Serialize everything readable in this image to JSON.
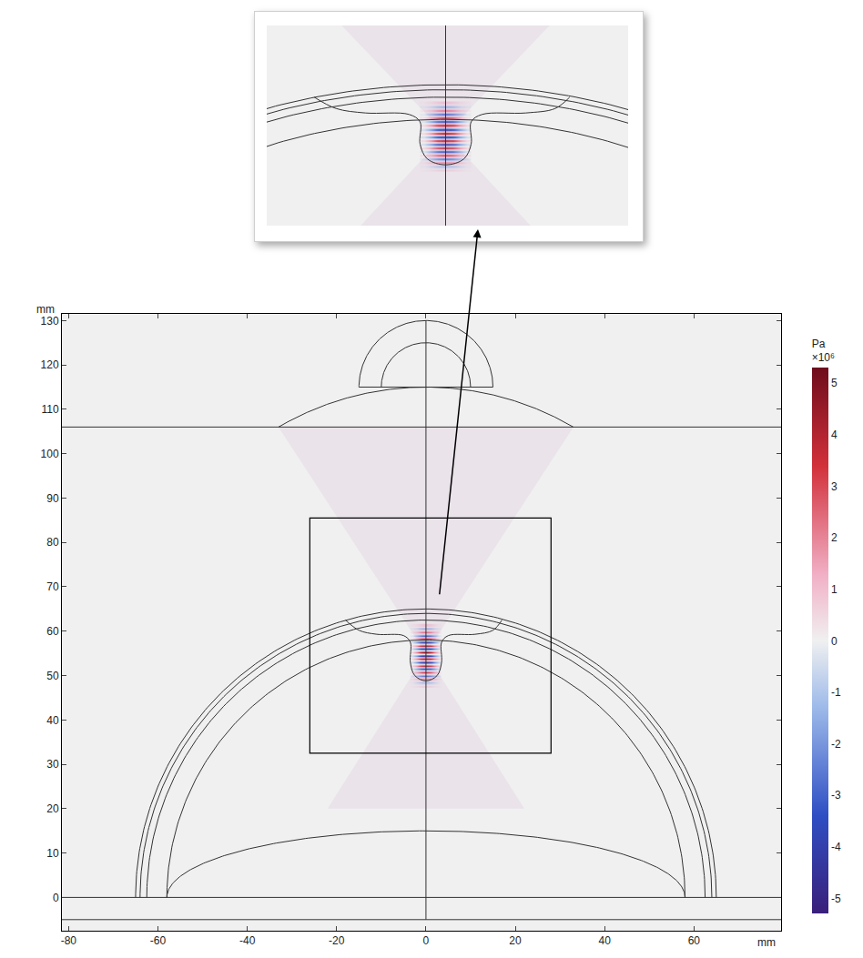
{
  "chart_data": {
    "type": "field",
    "x_unit": "mm",
    "y_unit": "mm",
    "xlim": [
      -81.5,
      79.5
    ],
    "xticks": [
      -80,
      -60,
      -40,
      -20,
      0,
      20,
      40,
      60
    ],
    "ylim": [
      -7.5,
      131.5
    ],
    "yticks": [
      0,
      10,
      20,
      30,
      40,
      50,
      60,
      70,
      80,
      90,
      100,
      110,
      120,
      130
    ],
    "grid": false,
    "field": {
      "colorbar_title": "Pa",
      "colorbar_exponent": "×10⁶",
      "crange": [
        -5.3,
        5.3
      ],
      "cticks": [
        -5,
        -4,
        -3,
        -2,
        -1,
        0,
        1,
        2,
        3,
        4,
        5
      ],
      "x": [
        -3,
        -2,
        -1,
        0,
        1,
        2,
        3
      ],
      "y": [
        47.75,
        48.5,
        49.25,
        50,
        50.75,
        51.5,
        52.25,
        53,
        53.75,
        54.5,
        55.25,
        56,
        56.75,
        57.5,
        58.25,
        59,
        59.75,
        60.5,
        61.25
      ],
      "values": [
        [
          0.05,
          0.2,
          0.4,
          0.5,
          0.4,
          0.2,
          0.05
        ],
        [
          -0.1,
          -0.5,
          -1,
          -1.2,
          -1,
          -0.5,
          -0.1
        ],
        [
          0.2,
          0.9,
          1.8,
          2.2,
          1.8,
          0.9,
          0.2
        ],
        [
          -0.3,
          -1.2,
          -2.4,
          -3,
          -2.4,
          -1.2,
          -0.3
        ],
        [
          0.4,
          1.4,
          2.9,
          3.6,
          2.9,
          1.4,
          0.4
        ],
        [
          -0.4,
          -1.6,
          -3.3,
          -4.1,
          -3.3,
          -1.6,
          -0.4
        ],
        [
          0.5,
          1.8,
          3.6,
          4.5,
          3.6,
          1.8,
          0.5
        ],
        [
          -0.5,
          -1.9,
          -3.8,
          -4.8,
          -3.8,
          -1.9,
          -0.5
        ],
        [
          0.5,
          2,
          4,
          5,
          4,
          2,
          0.5
        ],
        [
          -0.5,
          -2,
          -4.1,
          -5.1,
          -4.1,
          -2,
          -0.5
        ],
        [
          0.5,
          2,
          4,
          5,
          4,
          2,
          0.5
        ],
        [
          -0.5,
          -2,
          -3.9,
          -4.9,
          -3.9,
          -2,
          -0.5
        ],
        [
          0.5,
          1.9,
          3.8,
          4.7,
          3.8,
          1.9,
          0.5
        ],
        [
          -0.4,
          -1.8,
          -3.5,
          -4.4,
          -3.5,
          -1.8,
          -0.4
        ],
        [
          0.4,
          1.6,
          3.2,
          4,
          3.2,
          1.6,
          0.4
        ],
        [
          -0.3,
          -1.4,
          -2.7,
          -3.4,
          -2.7,
          -1.4,
          -0.3
        ],
        [
          0.3,
          1,
          2.1,
          2.6,
          2.1,
          1,
          0.3
        ],
        [
          -0.2,
          -0.6,
          -1.3,
          -1.6,
          -1.3,
          -0.6,
          -0.2
        ],
        [
          0.1,
          0.3,
          0.6,
          0.8,
          0.6,
          0.3,
          0.1
        ]
      ]
    },
    "geometry": {
      "arcs": [
        {
          "center": [
            0,
            115
          ],
          "radius": 15,
          "from": 0,
          "to": 180
        },
        {
          "center": [
            0,
            115
          ],
          "radius": 10,
          "from": 0,
          "to": 180
        },
        {
          "center": [
            0,
            50
          ],
          "radius": 65,
          "from": 59.5,
          "to": 120.5
        },
        {
          "center": [
            0,
            0
          ],
          "radius": 65,
          "from": 0,
          "to": 180
        },
        {
          "center": [
            0,
            0
          ],
          "radius": 64,
          "from": 0,
          "to": 180
        },
        {
          "center": [
            0,
            0
          ],
          "radius": 62.5,
          "from": 0,
          "to": 180
        },
        {
          "center": [
            0,
            0
          ],
          "radius": 58,
          "from": 0,
          "to": 180
        }
      ],
      "ellipses": [
        {
          "center": [
            0,
            0
          ],
          "radii": [
            58,
            15
          ],
          "from": 0,
          "to": 180
        }
      ],
      "hlines": [
        106,
        0,
        -5
      ],
      "segments": [
        [
          [
            -15,
            115
          ],
          [
            15,
            115
          ]
        ],
        [
          [
            0,
            -5
          ],
          [
            0,
            130
          ]
        ]
      ],
      "curves": [
        [
          [
            -18,
            62.5
          ],
          [
            -15,
            60.2
          ],
          [
            -11,
            59.3
          ],
          [
            -5,
            59
          ],
          [
            -3.5,
            57.5
          ],
          [
            -3.5,
            53
          ],
          [
            -2.5,
            50
          ],
          [
            0,
            48.8
          ],
          [
            2.5,
            50
          ],
          [
            3.5,
            53
          ],
          [
            3.5,
            57.5
          ],
          [
            5,
            59
          ],
          [
            11,
            59.3
          ],
          [
            15,
            60.2
          ],
          [
            17,
            62.5
          ]
        ]
      ],
      "beams": [
        [
          [
            -33,
            106
          ],
          [
            33,
            106
          ],
          [
            0,
            55
          ]
        ],
        [
          [
            0,
            55
          ],
          [
            -22,
            20
          ],
          [
            22,
            20
          ]
        ]
      ]
    },
    "zoom_box": {
      "xlim": [
        -26,
        28
      ],
      "ylim": [
        32.5,
        85.5
      ]
    },
    "inset": {
      "xlim": [
        -24.5,
        25
      ],
      "ylim": [
        36.5,
        77
      ]
    },
    "arrow_from": [
      3,
      68
    ]
  }
}
